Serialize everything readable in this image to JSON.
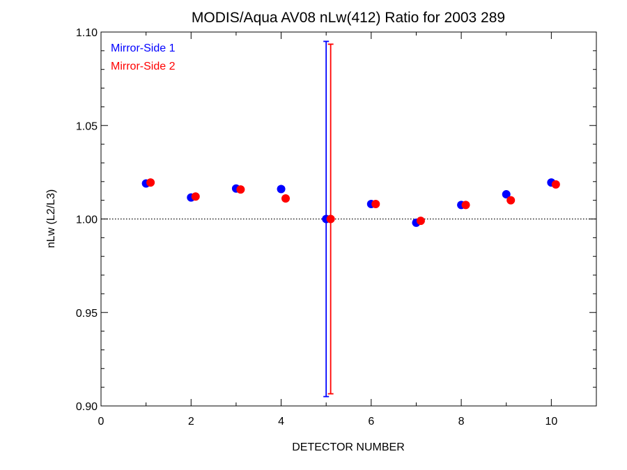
{
  "chart_data": {
    "type": "scatter",
    "title": "MODIS/Aqua AV08 nLw(412) Ratio for 2003 289",
    "xlabel": "DETECTOR NUMBER",
    "ylabel": "nLw (L2/L3)",
    "xlim": [
      0,
      11
    ],
    "ylim": [
      0.9,
      1.1
    ],
    "x_ticks": [
      0,
      2,
      4,
      6,
      8,
      10
    ],
    "x_tick_labels": [
      "0",
      "2",
      "4",
      "6",
      "8",
      "10"
    ],
    "y_ticks": [
      0.9,
      0.95,
      1.0,
      1.05,
      1.1
    ],
    "y_tick_labels": [
      "0.90",
      "0.95",
      "1.00",
      "1.05",
      "1.10"
    ],
    "reference_line": {
      "y": 1.0,
      "style": "dotted"
    },
    "legend_position": "top-left",
    "series": [
      {
        "name": "Mirror-Side 1",
        "color": "#0000ff",
        "x": [
          1,
          2,
          3,
          4,
          5,
          6,
          7,
          8,
          9,
          10
        ],
        "y": [
          1.019,
          1.0115,
          1.0163,
          1.016,
          1.0,
          1.008,
          0.998,
          1.0075,
          1.0132,
          1.0195
        ],
        "error_bars": [
          {
            "x": 5,
            "low": 0.905,
            "high": 1.095
          }
        ]
      },
      {
        "name": "Mirror-Side 2",
        "color": "#ff0000",
        "x": [
          1.1,
          2.1,
          3.1,
          4.1,
          5.1,
          6.1,
          7.1,
          8.1,
          9.1,
          10.1
        ],
        "y": [
          1.0195,
          1.012,
          1.0158,
          1.011,
          1.0,
          1.008,
          0.999,
          1.0075,
          1.01,
          1.0185
        ],
        "error_bars": [
          {
            "x": 5.1,
            "low": 0.9065,
            "high": 1.0935
          }
        ]
      }
    ]
  }
}
